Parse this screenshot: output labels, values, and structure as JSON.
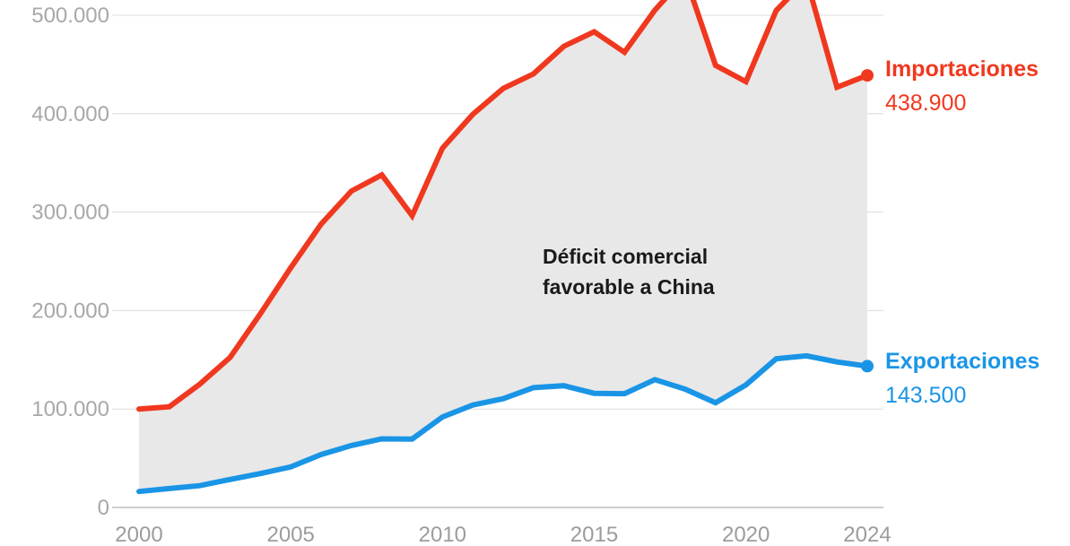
{
  "chart_data": {
    "type": "line",
    "title": "",
    "xlabel": "",
    "ylabel": "",
    "x": [
      2000,
      2001,
      2002,
      2003,
      2004,
      2005,
      2006,
      2007,
      2008,
      2009,
      2010,
      2011,
      2012,
      2013,
      2014,
      2015,
      2016,
      2017,
      2018,
      2019,
      2020,
      2021,
      2022,
      2023,
      2024
    ],
    "x_ticks": [
      "2000",
      "2005",
      "2010",
      "2015",
      "2020",
      "2024"
    ],
    "y_ticks": [
      "0",
      "100.000",
      "200.000",
      "300.000",
      "400.000",
      "500.000"
    ],
    "ylim": [
      0,
      500000
    ],
    "grid": true,
    "legend": "direct labels at line ends (right)",
    "series": [
      {
        "name": "Importaciones",
        "end_label": "438.900",
        "color": "#f0381f",
        "values": [
          100000,
          102300,
          125200,
          152400,
          196700,
          243500,
          287800,
          321400,
          337800,
          296400,
          364900,
          399400,
          425600,
          440400,
          468500,
          483200,
          462400,
          505200,
          539500,
          449100,
          432500,
          504900,
          536300,
          426900,
          438900
        ]
      },
      {
        "name": "Exportaciones",
        "end_label": "143.500",
        "color": "#1a95e6",
        "values": [
          16200,
          19200,
          22100,
          28400,
          34400,
          41200,
          53700,
          62900,
          69700,
          69500,
          91900,
          104100,
          110500,
          121700,
          123700,
          115900,
          115600,
          129900,
          120100,
          106400,
          124500,
          151100,
          154000,
          147800,
          143500
        ]
      }
    ],
    "annotations": [
      "Déficit comercial",
      "favorable a China"
    ],
    "area_fill_color": "#e8e8e8",
    "grid_color": "#dcdcdc"
  }
}
